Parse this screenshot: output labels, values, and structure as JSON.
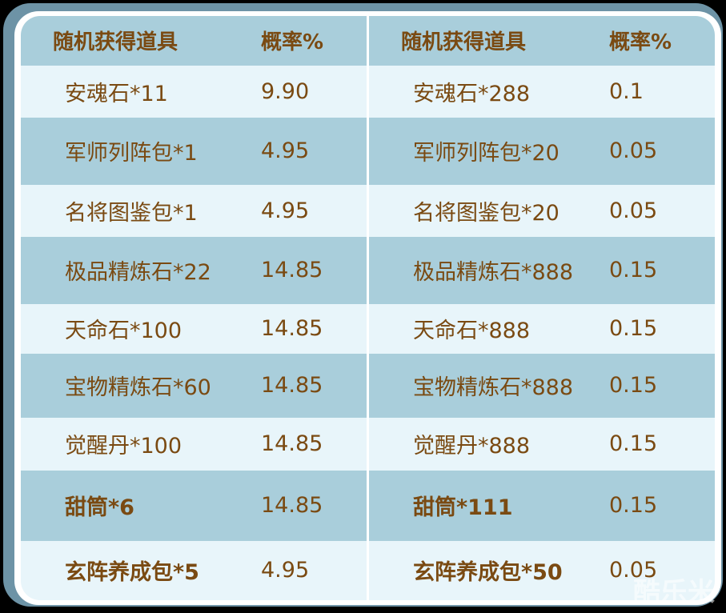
{
  "header": {
    "item": "随机获得道具",
    "rate": "概率%"
  },
  "left": [
    {
      "name": "安魂石*11",
      "rate": "9.90"
    },
    {
      "name": "军师列阵包*1",
      "rate": "4.95"
    },
    {
      "name": "名将图鉴包*1",
      "rate": "4.95"
    },
    {
      "name": "极品精炼石*22",
      "rate": "14.85"
    },
    {
      "name": "天命石*100",
      "rate": "14.85"
    },
    {
      "name": "宝物精炼石*60",
      "rate": "14.85"
    },
    {
      "name": "觉醒丹*100",
      "rate": "14.85"
    },
    {
      "name": "甜筒*6",
      "rate": "14.85",
      "bold": true
    },
    {
      "name": "玄阵养成包*5",
      "rate": "4.95",
      "bold": true
    }
  ],
  "right": [
    {
      "name": "安魂石*288",
      "rate": "0.1"
    },
    {
      "name": "军师列阵包*20",
      "rate": "0.05"
    },
    {
      "name": "名将图鉴包*20",
      "rate": "0.05"
    },
    {
      "name": "极品精炼石*888",
      "rate": "0.15"
    },
    {
      "name": "天命石*888",
      "rate": "0.15"
    },
    {
      "name": "宝物精炼石*888",
      "rate": "0.15"
    },
    {
      "name": "觉醒丹*888",
      "rate": "0.15"
    },
    {
      "name": "甜筒*111",
      "rate": "0.15",
      "bold": true
    },
    {
      "name": "玄阵养成包*50",
      "rate": "0.05",
      "bold": true
    }
  ],
  "watermark": "酷乐米",
  "colors": {
    "text": "#7a4a12",
    "row_dark": "#a9cedb",
    "row_light": "#e8f5fa",
    "frame": "#6d93a6"
  }
}
